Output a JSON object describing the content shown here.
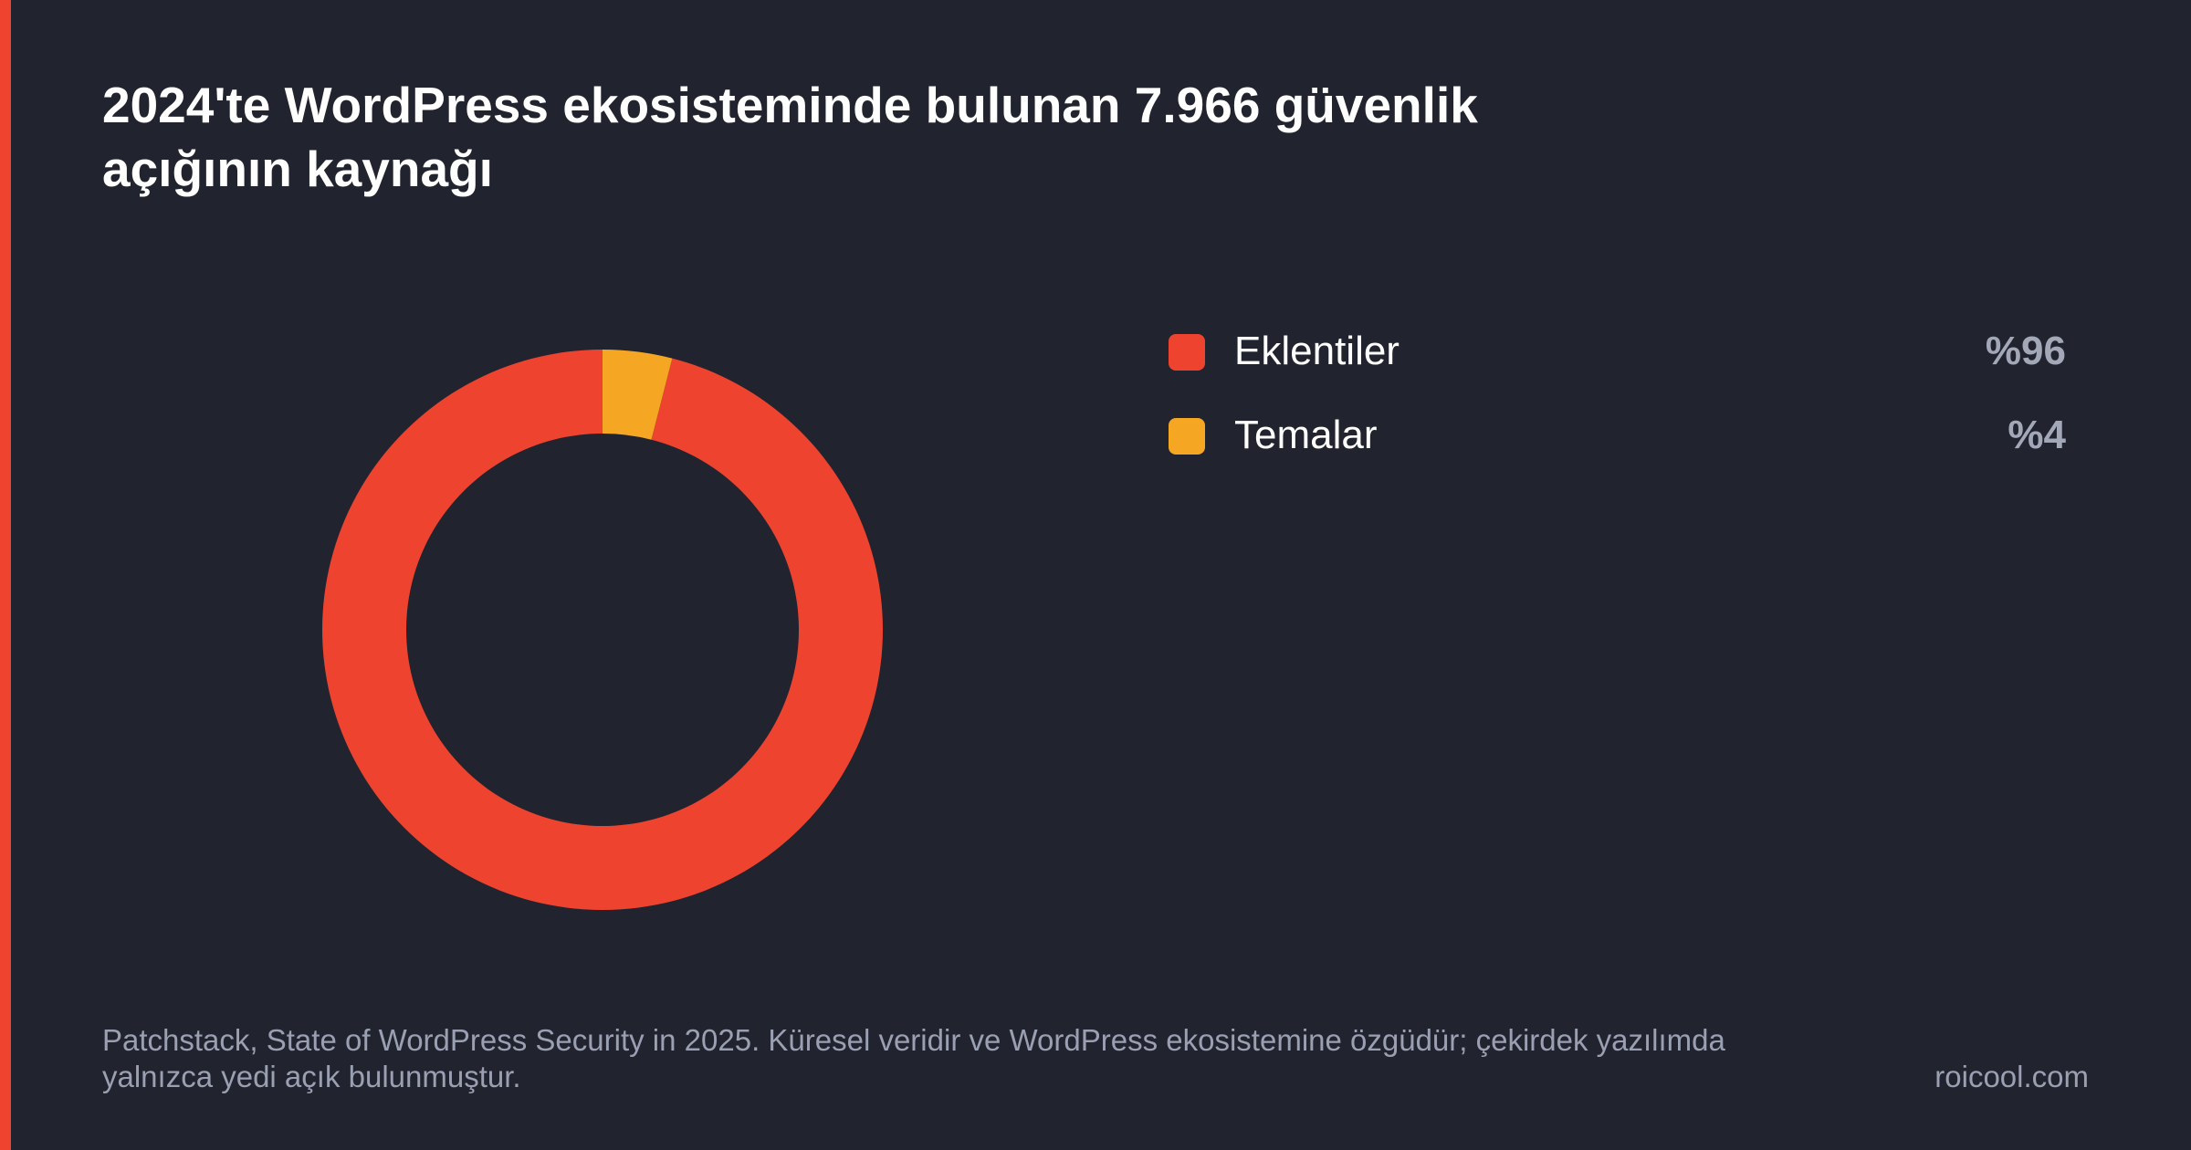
{
  "colors": {
    "background": "#21232f",
    "accent": "#ee442f",
    "plugins": "#ee442f",
    "themes": "#f5a623"
  },
  "chart_data": {
    "type": "pie",
    "variant": "donut",
    "title": "2024'te WordPress ekosisteminde bulunan 7.966 güvenlik açığının kaynağı",
    "legend_placement": "right",
    "slices": [
      {
        "name": "Eklentiler",
        "value": 96,
        "label": "%96",
        "color": "#ee442f"
      },
      {
        "name": "Temalar",
        "value": 4,
        "label": "%4",
        "color": "#f5a623"
      }
    ]
  },
  "footer": {
    "source": "Patchstack, State of WordPress Security in 2025. Küresel veridir ve WordPress ekosistemine özgüdür; çekirdek yazılımda yalnızca yedi açık bulunmuştur.",
    "brand": "roicool.com"
  }
}
